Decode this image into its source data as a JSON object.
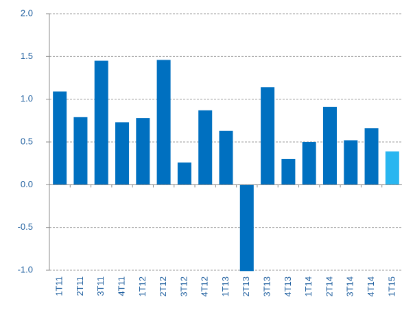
{
  "chart_data": {
    "type": "bar",
    "categories": [
      "1T11",
      "2T11",
      "3T11",
      "4T11",
      "1T12",
      "2T12",
      "3T12",
      "4T12",
      "1T13",
      "2T13",
      "3T13",
      "4T13",
      "1T14",
      "2T14",
      "3T14",
      "4T14",
      "1T15"
    ],
    "values": [
      1.09,
      0.79,
      1.45,
      0.73,
      0.78,
      1.46,
      0.26,
      0.87,
      0.63,
      -1.01,
      1.14,
      0.3,
      0.5,
      0.91,
      0.52,
      0.66,
      0.39
    ],
    "colors": [
      "#0070c0",
      "#0070c0",
      "#0070c0",
      "#0070c0",
      "#0070c0",
      "#0070c0",
      "#0070c0",
      "#0070c0",
      "#0070c0",
      "#0070c0",
      "#0070c0",
      "#0070c0",
      "#0070c0",
      "#0070c0",
      "#0070c0",
      "#0070c0",
      "#29b6f0"
    ],
    "ylim": [
      -1.0,
      2.0
    ],
    "yticks": [
      {
        "value": -1.0,
        "label": "-1.0"
      },
      -0.5,
      {
        "value": 0.0,
        "label": "0.0"
      },
      0.5,
      {
        "value": 1.0,
        "label": "1.0"
      },
      1.5,
      {
        "value": 2.0,
        "label": "2.0"
      }
    ],
    "grid": true
  }
}
